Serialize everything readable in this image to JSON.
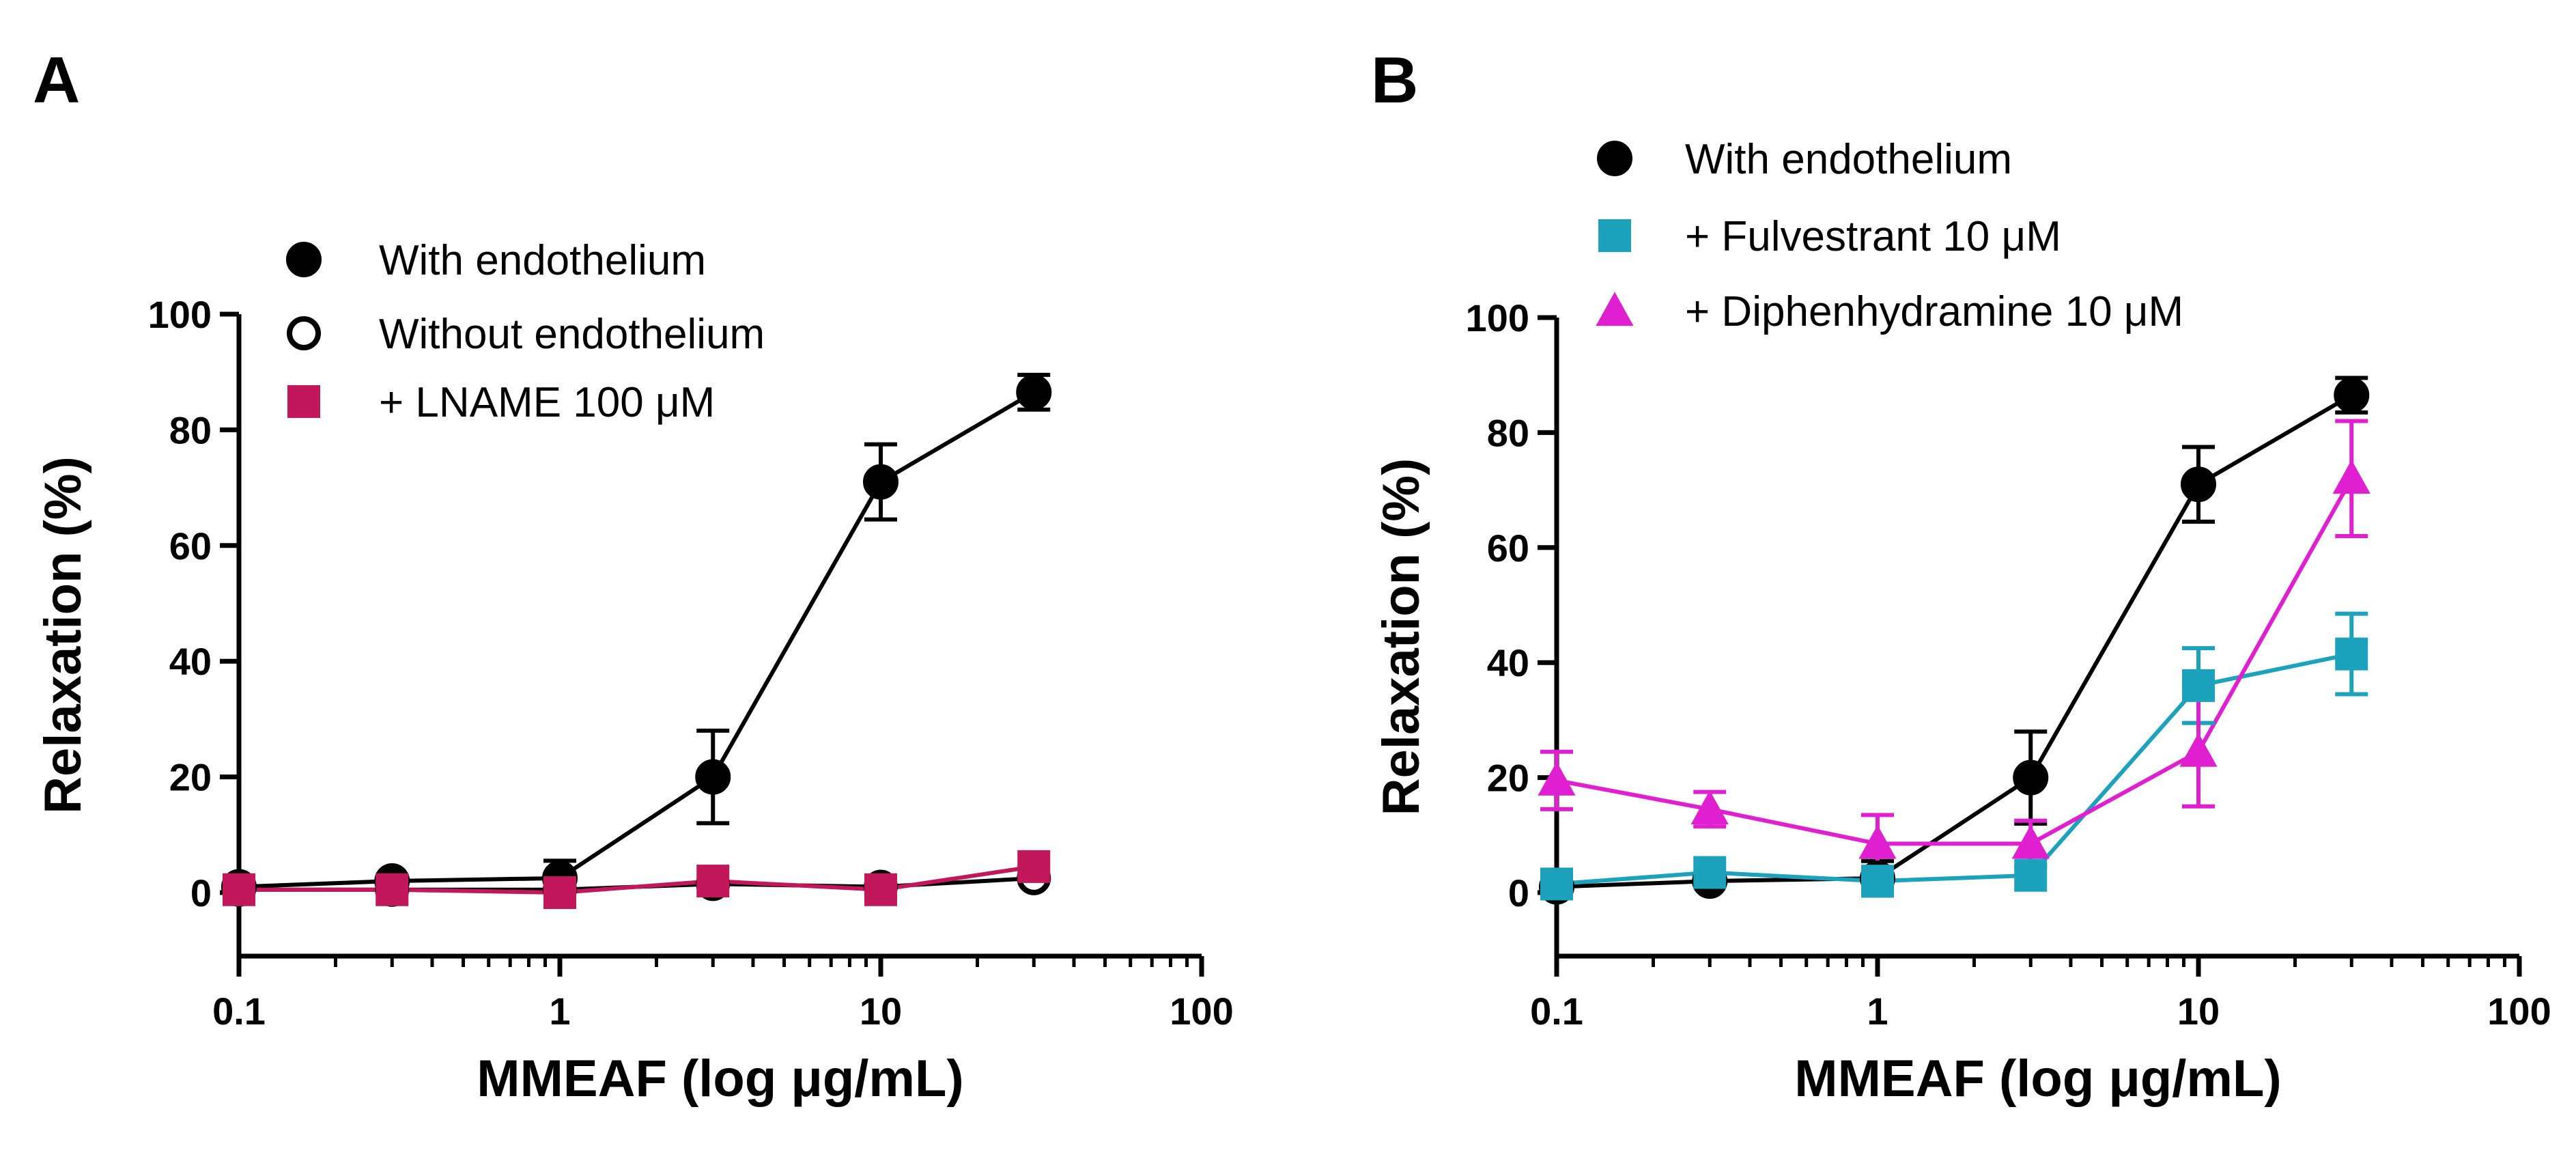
{
  "chart_data": [
    {
      "panel": "A",
      "type": "line",
      "xscale": "log",
      "xlim": [
        0.1,
        100
      ],
      "ylim": [
        -10,
        100
      ],
      "xticks": [
        "0.1",
        "1",
        "10",
        "100"
      ],
      "yticks": [
        "0",
        "20",
        "40",
        "60",
        "80",
        "100"
      ],
      "xlabel": "MMEAF (log μg/mL)",
      "ylabel": "Relaxation (%)",
      "legend_position": "top-left",
      "series": [
        {
          "name": "With endothelium",
          "marker": "circle-filled",
          "color": "#000000",
          "x": [
            0.1,
            0.3,
            1,
            3,
            10,
            30
          ],
          "y": [
            1,
            2,
            2.5,
            20,
            71,
            86.5
          ],
          "err": [
            0,
            0,
            3,
            8,
            6.5,
            3
          ]
        },
        {
          "name": "Without endothelium",
          "marker": "circle-open",
          "color": "#000000",
          "x": [
            0.1,
            0.3,
            1,
            3,
            10,
            30
          ],
          "y": [
            0.5,
            0.5,
            0.5,
            1.5,
            1,
            2.5
          ],
          "err": [
            0,
            0,
            0,
            0,
            0,
            0
          ]
        },
        {
          "name": "+ LNAME 100 μM",
          "marker": "square",
          "color": "#C2185B",
          "x": [
            0.1,
            0.3,
            1,
            3,
            10,
            30
          ],
          "y": [
            0.5,
            0.5,
            0,
            2,
            0.5,
            4.5
          ],
          "err": [
            0,
            0,
            0,
            0,
            0,
            0
          ]
        }
      ]
    },
    {
      "panel": "B",
      "type": "line",
      "xscale": "log",
      "xlim": [
        0.1,
        100
      ],
      "ylim": [
        -10,
        100
      ],
      "xticks": [
        "0.1",
        "1",
        "10",
        "100"
      ],
      "yticks": [
        "0",
        "20",
        "40",
        "60",
        "80",
        "100"
      ],
      "xlabel": "MMEAF (log μg/mL)",
      "ylabel": "Relaxation (%)",
      "legend_position": "top-left",
      "series": [
        {
          "name": "With endothelium",
          "marker": "circle-filled",
          "color": "#000000",
          "x": [
            0.1,
            0.3,
            1,
            3,
            10,
            30
          ],
          "y": [
            1,
            2,
            2.5,
            20,
            71,
            86.5
          ],
          "err": [
            0,
            0,
            3,
            8,
            6.5,
            3
          ]
        },
        {
          "name": "+ Fulvestrant 10 μM",
          "marker": "square",
          "color": "#1CA2BD",
          "x": [
            0.1,
            0.3,
            1,
            3,
            10,
            30
          ],
          "y": [
            1.5,
            3.5,
            2,
            3,
            36,
            41.5
          ],
          "err": [
            0,
            0,
            0,
            0,
            6.5,
            7
          ]
        },
        {
          "name": "+ Diphenhydramine 10 μM",
          "marker": "triangle",
          "color": "#E020D0",
          "x": [
            0.1,
            0.3,
            1,
            3,
            10,
            30
          ],
          "y": [
            19.5,
            14.5,
            8.5,
            8.5,
            24.5,
            72
          ],
          "err": [
            5,
            3,
            5,
            4,
            9.5,
            10
          ]
        }
      ]
    }
  ]
}
